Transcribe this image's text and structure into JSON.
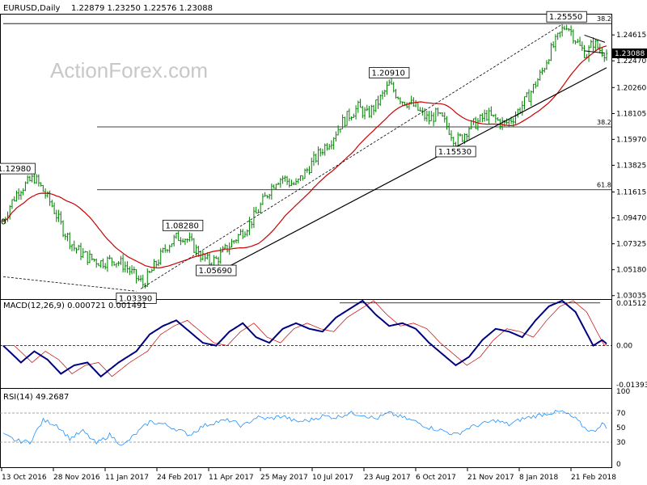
{
  "chart_data": {
    "type": "candlestick",
    "symbol": "EURUSD",
    "timeframe": "Daily",
    "header": {
      "symbol_label": "EURUSD,Daily",
      "ohlc_text": "1.22879 1.23250 1.22576 1.23088"
    },
    "watermark": "ActionForex.com",
    "price_axis": {
      "ticks": [
        "1.24615",
        "1.22470",
        "1.20260",
        "1.18105",
        "1.15970",
        "1.13825",
        "1.11615",
        "1.09470",
        "1.07325",
        "1.05180",
        "1.03035"
      ],
      "current_price": "1.23088",
      "range": [
        1.0275,
        1.263
      ]
    },
    "date_labels": [
      "13 Oct 2016",
      "28 Nov 2016",
      "11 Jan 2017",
      "24 Feb 2017",
      "11 Apr 2017",
      "25 May 2017",
      "10 Jul 2017",
      "23 Aug 2017",
      "6 Oct 2017",
      "21 Nov 2017",
      "8 Jan 2018",
      "21 Feb 2018"
    ],
    "grid": false,
    "approx_close_path": [
      [
        0,
        1.092
      ],
      [
        3,
        1.105
      ],
      [
        7,
        1.118
      ],
      [
        10,
        1.122
      ],
      [
        14,
        1.128
      ],
      [
        17,
        1.12
      ],
      [
        22,
        1.105
      ],
      [
        27,
        1.085
      ],
      [
        32,
        1.07
      ],
      [
        38,
        1.062
      ],
      [
        44,
        1.058
      ],
      [
        50,
        1.06
      ],
      [
        55,
        1.055
      ],
      [
        60,
        1.045
      ],
      [
        63,
        1.04
      ],
      [
        66,
        1.048
      ],
      [
        70,
        1.06
      ],
      [
        74,
        1.072
      ],
      [
        78,
        1.078
      ],
      [
        81,
        1.08
      ],
      [
        84,
        1.075
      ],
      [
        87,
        1.068
      ],
      [
        90,
        1.062
      ],
      [
        93,
        1.058
      ],
      [
        96,
        1.06
      ],
      [
        99,
        1.066
      ],
      [
        102,
        1.072
      ],
      [
        105,
        1.078
      ],
      [
        108,
        1.084
      ],
      [
        111,
        1.09
      ],
      [
        114,
        1.098
      ],
      [
        117,
        1.108
      ],
      [
        120,
        1.118
      ],
      [
        123,
        1.126
      ],
      [
        126,
        1.128
      ],
      [
        129,
        1.124
      ],
      [
        132,
        1.122
      ],
      [
        136,
        1.132
      ],
      [
        140,
        1.142
      ],
      [
        144,
        1.152
      ],
      [
        148,
        1.16
      ],
      [
        152,
        1.172
      ],
      [
        156,
        1.18
      ],
      [
        160,
        1.186
      ],
      [
        164,
        1.18
      ],
      [
        168,
        1.188
      ],
      [
        171,
        1.196
      ],
      [
        174,
        1.205
      ],
      [
        177,
        1.198
      ],
      [
        180,
        1.192
      ],
      [
        183,
        1.19
      ],
      [
        186,
        1.186
      ],
      [
        189,
        1.18
      ],
      [
        192,
        1.176
      ],
      [
        195,
        1.18
      ],
      [
        198,
        1.176
      ],
      [
        201,
        1.168
      ],
      [
        204,
        1.158
      ],
      [
        207,
        1.162
      ],
      [
        210,
        1.17
      ],
      [
        214,
        1.174
      ],
      [
        218,
        1.18
      ],
      [
        222,
        1.176
      ],
      [
        226,
        1.172
      ],
      [
        230,
        1.178
      ],
      [
        234,
        1.188
      ],
      [
        237,
        1.196
      ],
      [
        240,
        1.206
      ],
      [
        243,
        1.216
      ],
      [
        246,
        1.23
      ],
      [
        249,
        1.24
      ],
      [
        252,
        1.25
      ],
      [
        254,
        1.255
      ],
      [
        257,
        1.246
      ],
      [
        260,
        1.236
      ],
      [
        263,
        1.23
      ],
      [
        266,
        1.24
      ],
      [
        269,
        1.234
      ],
      [
        272,
        1.231
      ]
    ],
    "swing_labels": [
      {
        "text": "1.25550",
        "idx": 254,
        "price": 1.2555
      },
      {
        "text": "1.20910",
        "idx": 174,
        "price": 1.2091
      },
      {
        "text": "1.15530",
        "idx": 204,
        "price": 1.1553
      },
      {
        "text": "1.08280",
        "idx": 81,
        "price": 1.0828
      },
      {
        "text": "1.05690",
        "idx": 96,
        "price": 1.0569
      },
      {
        "text": "1.03390",
        "idx": 60,
        "price": 1.0339
      },
      {
        "text": "1.12980",
        "idx": 7,
        "price": 1.1298
      }
    ],
    "fib_levels": [
      {
        "label": "38.2",
        "price": 1.2555
      },
      {
        "label": "38.2",
        "price": 1.17
      },
      {
        "label": "61.8",
        "price": 1.118
      }
    ],
    "macd": {
      "title": "MACD(12,26,9) 0.000721 0.001491",
      "ticks": [
        "0.01512",
        "0.00",
        "-0.01393"
      ],
      "range": [
        -0.0145,
        0.016
      ],
      "values": [
        [
          0,
          0.0
        ],
        [
          8,
          -0.006
        ],
        [
          14,
          -0.002
        ],
        [
          20,
          -0.005
        ],
        [
          26,
          -0.01
        ],
        [
          32,
          -0.007
        ],
        [
          38,
          -0.006
        ],
        [
          44,
          -0.011
        ],
        [
          52,
          -0.006
        ],
        [
          60,
          -0.002
        ],
        [
          66,
          0.004
        ],
        [
          72,
          0.007
        ],
        [
          78,
          0.009
        ],
        [
          84,
          0.005
        ],
        [
          90,
          0.001
        ],
        [
          96,
          0.0
        ],
        [
          102,
          0.005
        ],
        [
          108,
          0.008
        ],
        [
          114,
          0.003
        ],
        [
          120,
          0.001
        ],
        [
          126,
          0.006
        ],
        [
          132,
          0.008
        ],
        [
          138,
          0.006
        ],
        [
          144,
          0.005
        ],
        [
          150,
          0.01
        ],
        [
          156,
          0.013
        ],
        [
          162,
          0.016
        ],
        [
          168,
          0.011
        ],
        [
          174,
          0.007
        ],
        [
          180,
          0.008
        ],
        [
          186,
          0.006
        ],
        [
          192,
          0.001
        ],
        [
          198,
          -0.003
        ],
        [
          204,
          -0.007
        ],
        [
          210,
          -0.004
        ],
        [
          216,
          0.002
        ],
        [
          222,
          0.006
        ],
        [
          228,
          0.005
        ],
        [
          234,
          0.003
        ],
        [
          240,
          0.009
        ],
        [
          246,
          0.014
        ],
        [
          252,
          0.016
        ],
        [
          258,
          0.012
        ],
        [
          262,
          0.006
        ],
        [
          266,
          0.0
        ],
        [
          270,
          0.002
        ],
        [
          272,
          0.0007
        ]
      ]
    },
    "rsi": {
      "title": "RSI(14) 49.2687",
      "ticks": [
        "100",
        "70",
        "50",
        "30",
        "0"
      ],
      "levels": [
        70,
        30
      ],
      "values": [
        [
          0,
          40
        ],
        [
          6,
          32
        ],
        [
          12,
          30
        ],
        [
          18,
          60
        ],
        [
          24,
          54
        ],
        [
          30,
          35
        ],
        [
          36,
          45
        ],
        [
          42,
          28
        ],
        [
          48,
          40
        ],
        [
          54,
          25
        ],
        [
          60,
          42
        ],
        [
          66,
          58
        ],
        [
          72,
          55
        ],
        [
          78,
          48
        ],
        [
          84,
          40
        ],
        [
          90,
          52
        ],
        [
          96,
          58
        ],
        [
          102,
          60
        ],
        [
          108,
          52
        ],
        [
          114,
          64
        ],
        [
          120,
          62
        ],
        [
          126,
          66
        ],
        [
          132,
          58
        ],
        [
          138,
          60
        ],
        [
          144,
          66
        ],
        [
          150,
          64
        ],
        [
          156,
          70
        ],
        [
          162,
          68
        ],
        [
          168,
          62
        ],
        [
          174,
          70
        ],
        [
          180,
          64
        ],
        [
          186,
          58
        ],
        [
          192,
          50
        ],
        [
          198,
          46
        ],
        [
          204,
          40
        ],
        [
          210,
          50
        ],
        [
          216,
          55
        ],
        [
          222,
          60
        ],
        [
          228,
          54
        ],
        [
          234,
          62
        ],
        [
          240,
          66
        ],
        [
          246,
          70
        ],
        [
          252,
          72
        ],
        [
          258,
          62
        ],
        [
          262,
          50
        ],
        [
          266,
          44
        ],
        [
          270,
          56
        ],
        [
          272,
          49
        ]
      ]
    },
    "colors": {
      "candle": "#008000",
      "ma_line": "#cc0000",
      "macd_line": "#000080",
      "signal_line": "#cc0000",
      "rsi_line": "#1e90ff",
      "trendline": "#000000",
      "price_box": "#000000"
    }
  }
}
